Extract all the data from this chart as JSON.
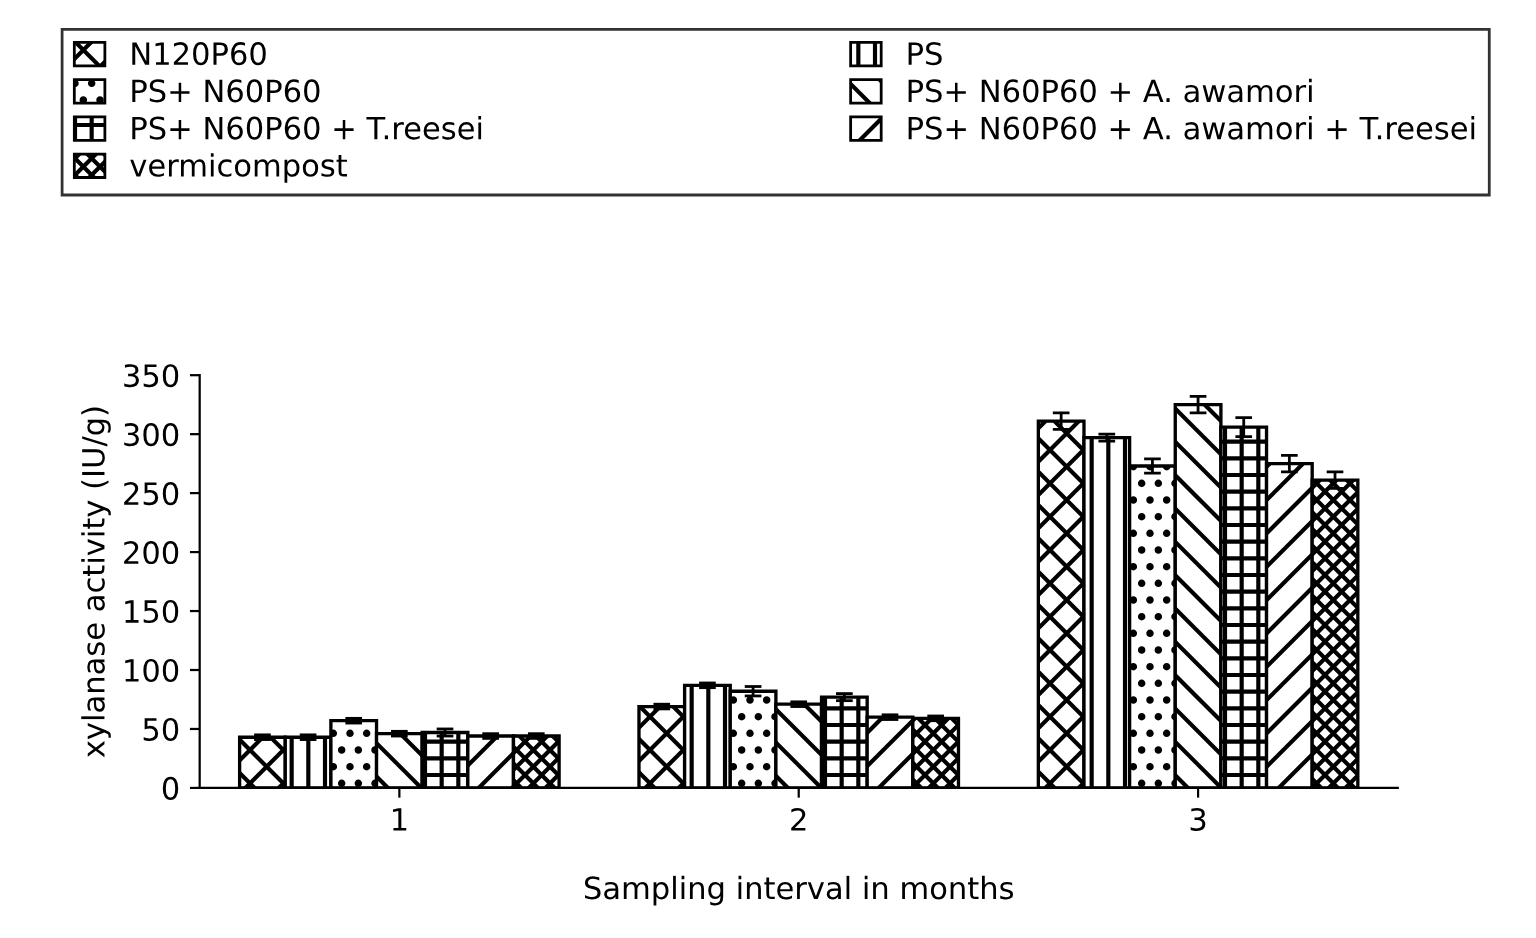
{
  "chart_data": {
    "type": "bar",
    "xlabel": "Sampling interval in months",
    "ylabel": "xylanase activity (IU/g)",
    "categories": [
      "1",
      "2",
      "3"
    ],
    "series": [
      {
        "name": "N120P60",
        "color": "#000000",
        "values": [
          43,
          69,
          311
        ],
        "errors": [
          2,
          2,
          7
        ]
      },
      {
        "name": "PS",
        "color": "#000000",
        "values": [
          43,
          87,
          297
        ],
        "errors": [
          2,
          2,
          3
        ]
      },
      {
        "name": "PS+ N60P60",
        "color": "#000000",
        "values": [
          57,
          82,
          273
        ],
        "errors": [
          2,
          4,
          6
        ]
      },
      {
        "name": "PS+ N60P60 + A. awamori",
        "color": "#000000",
        "values": [
          46,
          71,
          325
        ],
        "errors": [
          2,
          2,
          7
        ]
      },
      {
        "name": "PS+ N60P60 + T.reesei",
        "color": "#000000",
        "values": [
          47,
          77,
          306
        ],
        "errors": [
          3,
          3,
          8
        ]
      },
      {
        "name": "PS+ N60P60 + A. awamori + T.reesei",
        "color": "#000000",
        "values": [
          44,
          60,
          275
        ],
        "errors": [
          2,
          2,
          7
        ]
      },
      {
        "name": "vermicompost",
        "color": "#000000",
        "values": [
          44,
          59,
          261
        ],
        "errors": [
          2,
          2,
          7
        ]
      }
    ],
    "ylim": [
      0,
      350
    ],
    "yticks": [
      0,
      50,
      100,
      150,
      200,
      250,
      300,
      350
    ],
    "grid": false,
    "legend": "top"
  }
}
